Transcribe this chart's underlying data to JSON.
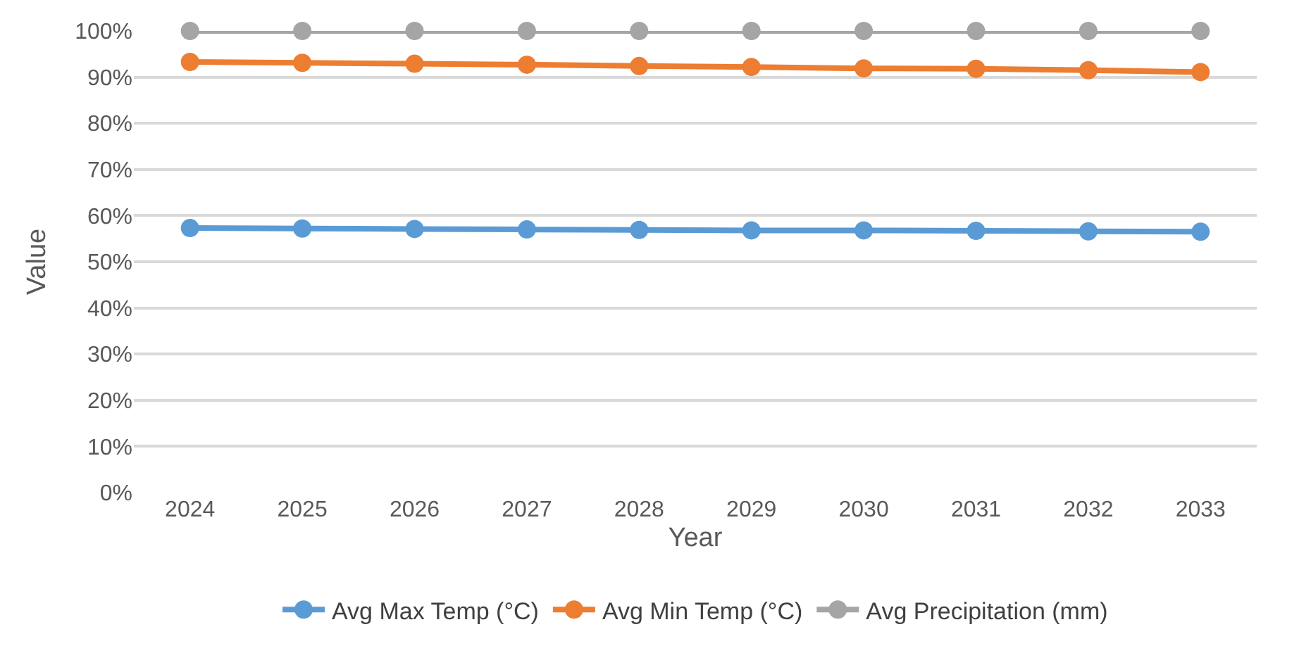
{
  "chart_data": {
    "type": "line",
    "xlabel": "Year",
    "ylabel": "Value",
    "categories": [
      "2024",
      "2025",
      "2026",
      "2027",
      "2028",
      "2029",
      "2030",
      "2031",
      "2032",
      "2033"
    ],
    "series": [
      {
        "name": "Avg Max Temp (°C)",
        "color": "#5b9bd5",
        "values": [
          57.3,
          57.2,
          57.1,
          57.0,
          56.9,
          56.8,
          56.8,
          56.7,
          56.6,
          56.5
        ]
      },
      {
        "name": "Avg Min Temp (°C)",
        "color": "#ed7d31",
        "values": [
          93.3,
          93.1,
          92.9,
          92.7,
          92.4,
          92.2,
          91.9,
          91.8,
          91.5,
          91.1
        ]
      },
      {
        "name": "Avg Precipitation (mm)",
        "color": "#a5a5a5",
        "values": [
          100,
          100,
          100,
          100,
          100,
          100,
          100,
          100,
          100,
          100
        ]
      }
    ],
    "ylim": [
      0,
      100
    ],
    "yticks": [
      {
        "value": 0,
        "label": "0%"
      },
      {
        "value": 10,
        "label": "10%"
      },
      {
        "value": 20,
        "label": "20%"
      },
      {
        "value": 30,
        "label": "30%"
      },
      {
        "value": 40,
        "label": "40%"
      },
      {
        "value": 50,
        "label": "50%"
      },
      {
        "value": 60,
        "label": "60%"
      },
      {
        "value": 70,
        "label": "70%"
      },
      {
        "value": 80,
        "label": "80%"
      },
      {
        "value": 90,
        "label": "90%"
      },
      {
        "value": 100,
        "label": "100%"
      }
    ],
    "grid": "y",
    "legend": "bottom",
    "marker": "circle",
    "line_style": "solid"
  }
}
